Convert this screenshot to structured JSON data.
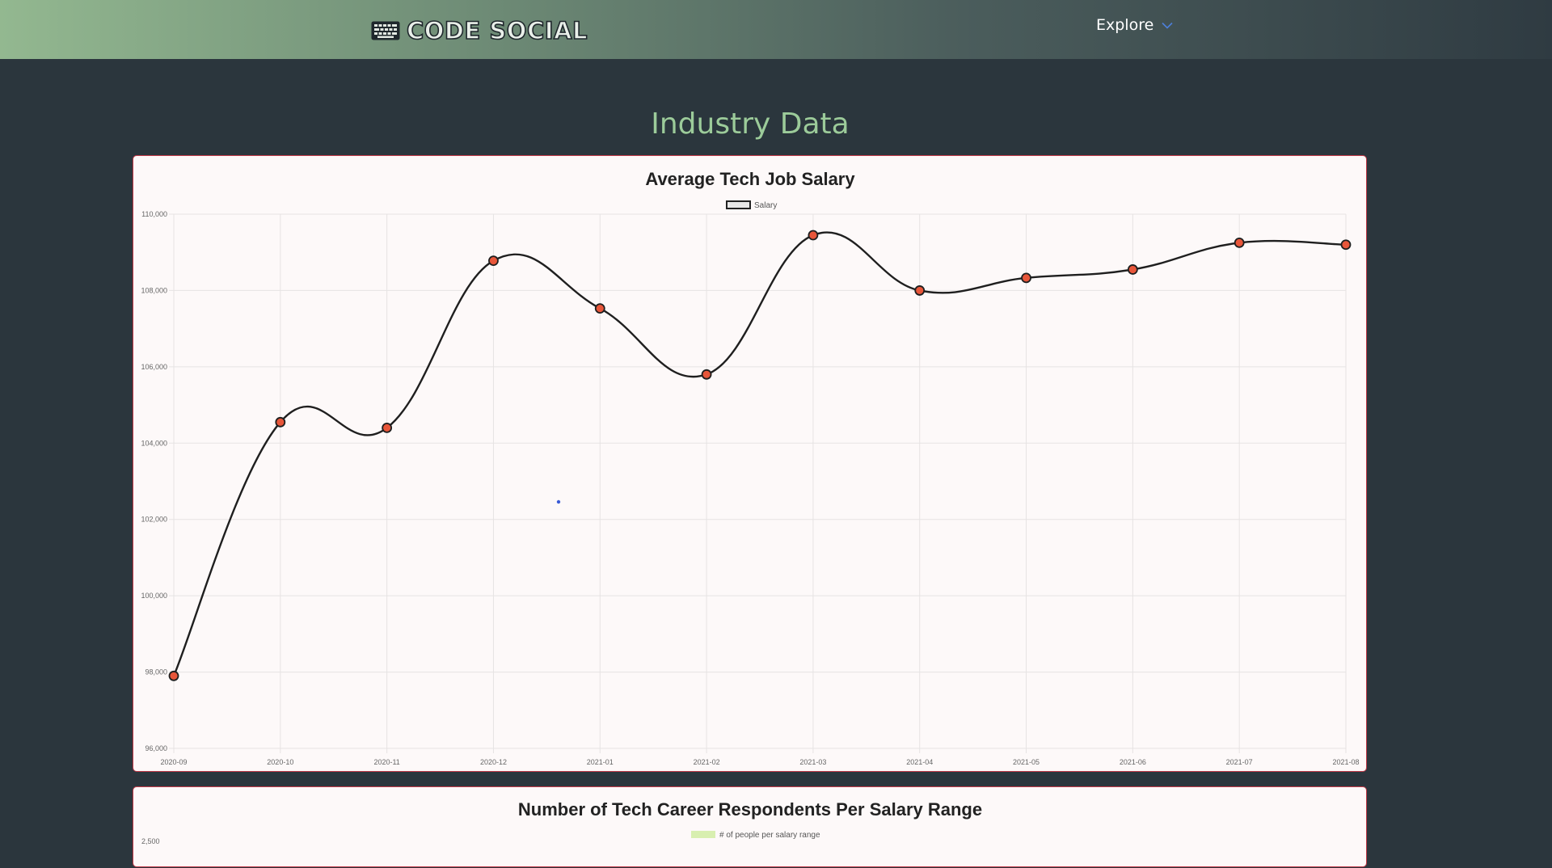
{
  "navbar": {
    "brand": "CODE SOCIAL",
    "brand_icon": "keyboard-icon",
    "explore_label": "Explore",
    "explore_icon": "chevron-down-icon",
    "accent_color": "#4d7fd9"
  },
  "page": {
    "title": "Industry Data"
  },
  "chart_data": [
    {
      "type": "line",
      "title": "Average Tech Job Salary",
      "categories": [
        "2020-09",
        "2020-10",
        "2020-11",
        "2020-12",
        "2021-01",
        "2021-02",
        "2021-03",
        "2021-04",
        "2021-05",
        "2021-06",
        "2021-07",
        "2021-08"
      ],
      "series": [
        {
          "name": "Salary",
          "values": [
            97900,
            104550,
            104400,
            108780,
            107530,
            105800,
            109450,
            108000,
            108330,
            108550,
            109250,
            109200
          ]
        }
      ],
      "yticks": [
        "110,000",
        "108,000",
        "106,000",
        "104,000",
        "102,000",
        "100,000",
        "98,000",
        "96,000"
      ],
      "ylim": [
        96000,
        110000
      ],
      "grid": true,
      "legend": "top-center",
      "line_color": "#1f1f1f",
      "point_color": "#e8563a"
    },
    {
      "type": "bar",
      "title": "Number of Tech Career Respondents Per Salary Range",
      "series": [
        {
          "name": "# of people per salary range"
        }
      ],
      "yticks": [
        "2,500"
      ],
      "legend": "top-center",
      "bar_color": "#d8efb0"
    }
  ]
}
